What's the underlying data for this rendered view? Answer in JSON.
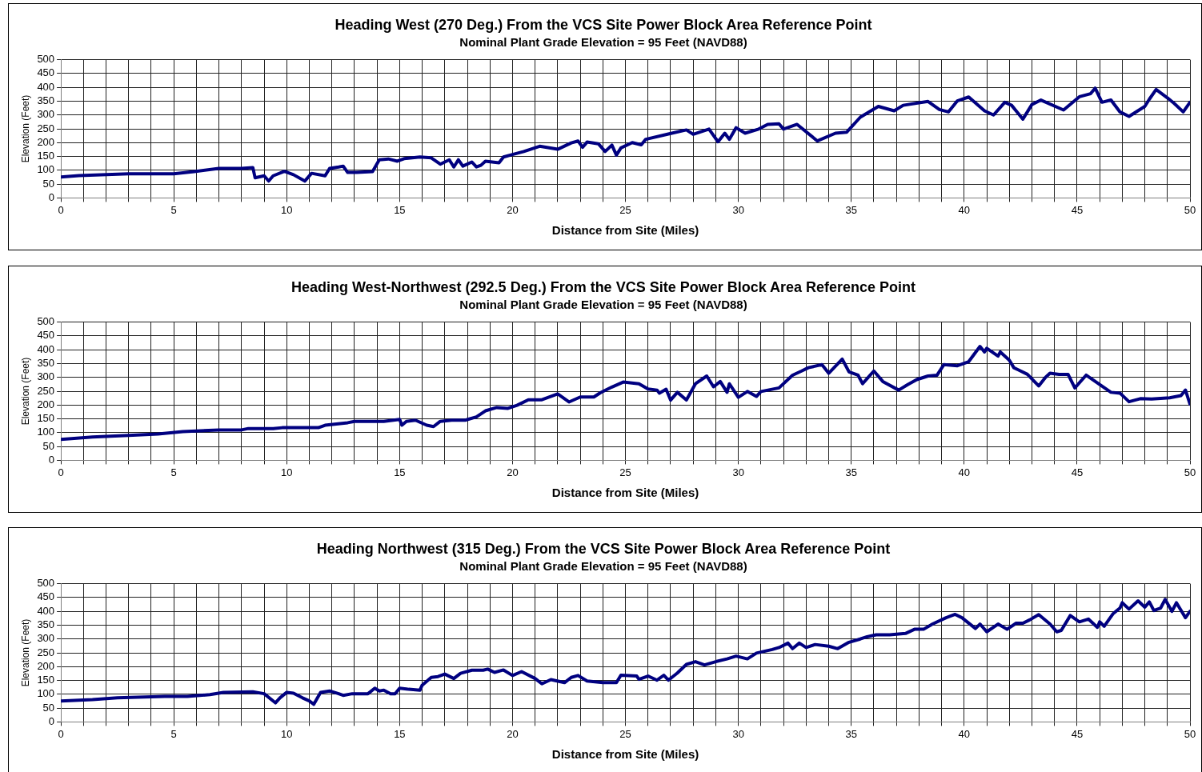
{
  "chart_data": [
    {
      "type": "line",
      "title": "Heading West (270 Deg.) From the VCS Site Power Block Area Reference Point",
      "subtitle": "Nominal Plant Grade Elevation = 95 Feet (NAVD88)",
      "xlabel": "Distance from Site (Miles)",
      "ylabel": "Elevation (Feet)",
      "grid": true,
      "marker": "none",
      "line_style": "solid",
      "xlim": [
        0,
        50
      ],
      "ylim": [
        0,
        500
      ],
      "xticks": [
        0,
        {
          "value": 1,
          "label": null
        },
        {
          "value": 2,
          "label": null
        },
        {
          "value": 3,
          "label": null
        },
        {
          "value": 4,
          "label": null
        },
        5,
        {
          "value": 6,
          "label": null
        },
        {
          "value": 7,
          "label": null
        },
        {
          "value": 8,
          "label": null
        },
        {
          "value": 9,
          "label": null
        },
        10,
        {
          "value": 11,
          "label": null
        },
        {
          "value": 12,
          "label": null
        },
        {
          "value": 13,
          "label": null
        },
        {
          "value": 14,
          "label": null
        },
        15,
        {
          "value": 16,
          "label": null
        },
        {
          "value": 17,
          "label": null
        },
        {
          "value": 18,
          "label": null
        },
        {
          "value": 19,
          "label": null
        },
        20,
        {
          "value": 21,
          "label": null
        },
        {
          "value": 22,
          "label": null
        },
        {
          "value": 23,
          "label": null
        },
        {
          "value": 24,
          "label": null
        },
        25,
        {
          "value": 26,
          "label": null
        },
        {
          "value": 27,
          "label": null
        },
        {
          "value": 28,
          "label": null
        },
        {
          "value": 29,
          "label": null
        },
        30,
        {
          "value": 31,
          "label": null
        },
        {
          "value": 32,
          "label": null
        },
        {
          "value": 33,
          "label": null
        },
        {
          "value": 34,
          "label": null
        },
        35,
        {
          "value": 36,
          "label": null
        },
        {
          "value": 37,
          "label": null
        },
        {
          "value": 38,
          "label": null
        },
        {
          "value": 39,
          "label": null
        },
        40,
        {
          "value": 41,
          "label": null
        },
        {
          "value": 42,
          "label": null
        },
        {
          "value": 43,
          "label": null
        },
        {
          "value": 44,
          "label": null
        },
        45,
        {
          "value": 46,
          "label": null
        },
        {
          "value": 47,
          "label": null
        },
        {
          "value": 48,
          "label": null
        },
        {
          "value": 49,
          "label": null
        },
        50
      ],
      "yticks": [
        0,
        50,
        100,
        150,
        200,
        250,
        300,
        350,
        400,
        450,
        500
      ],
      "x": [
        0,
        0.8,
        3,
        5,
        5.9,
        7,
        8,
        8.5,
        8.6,
        9,
        9.2,
        9.4,
        9.9,
        10.3,
        10.8,
        11.1,
        11.7,
        11.9,
        12.3,
        12.5,
        12.7,
        13.1,
        13.8,
        14.1,
        14.5,
        14.9,
        15.2,
        15.9,
        16.4,
        16.8,
        17.2,
        17.4,
        17.6,
        17.8,
        18.2,
        18.4,
        18.6,
        18.8,
        19.4,
        19.6,
        20,
        20.5,
        21.2,
        22,
        22.6,
        22.9,
        23.1,
        23.3,
        23.8,
        24.1,
        24.4,
        24.6,
        24.8,
        25.3,
        25.7,
        25.9,
        26.9,
        27.7,
        28,
        28.7,
        29.1,
        29.4,
        29.6,
        29.9,
        30.3,
        30.9,
        31.3,
        31.8,
        32,
        32.6,
        33.5,
        34.3,
        34.8,
        35.4,
        36.2,
        36.9,
        37.3,
        38.4,
        38.9,
        39.3,
        39.7,
        40.2,
        40.9,
        41.3,
        41.8,
        42.1,
        42.6,
        43,
        43.4,
        44.4,
        45.1,
        45.6,
        45.8,
        46.1,
        46.5,
        46.9,
        47.3,
        48,
        48.2,
        48.5,
        49,
        49.3,
        49.7,
        50
      ],
      "series": [
        {
          "color": "#000080",
          "values": [
            76,
            81,
            87,
            87,
            95,
            107,
            107,
            110,
            73,
            80,
            61,
            80,
            96,
            84,
            61,
            89,
            80,
            107,
            112,
            115,
            92,
            92,
            95,
            138,
            141,
            133,
            142,
            148,
            145,
            122,
            138,
            112,
            138,
            115,
            130,
            112,
            118,
            133,
            127,
            148,
            157,
            168,
            187,
            176,
            199,
            206,
            183,
            202,
            196,
            168,
            191,
            155,
            181,
            200,
            192,
            212,
            231,
            246,
            230,
            249,
            203,
            234,
            212,
            254,
            234,
            249,
            266,
            268,
            249,
            266,
            206,
            234,
            238,
            292,
            331,
            315,
            335,
            349,
            320,
            311,
            351,
            365,
            315,
            300,
            346,
            335,
            285,
            338,
            354,
            318,
            366,
            377,
            397,
            346,
            354,
            311,
            295,
            331,
            357,
            392,
            362,
            342,
            311,
            346
          ]
        }
      ]
    },
    {
      "type": "line",
      "title": "Heading West-Northwest (292.5 Deg.) From the VCS Site Power Block Area Reference Point",
      "subtitle": "Nominal Plant Grade Elevation = 95 Feet (NAVD88)",
      "xlabel": "Distance from Site (Miles)",
      "ylabel": "Elevation (Feet)",
      "grid": true,
      "marker": "none",
      "line_style": "solid",
      "xlim": [
        0,
        50
      ],
      "ylim": [
        0,
        500
      ],
      "xticks": [
        0,
        {
          "value": 1,
          "label": null
        },
        {
          "value": 2,
          "label": null
        },
        {
          "value": 3,
          "label": null
        },
        {
          "value": 4,
          "label": null
        },
        5,
        {
          "value": 6,
          "label": null
        },
        {
          "value": 7,
          "label": null
        },
        {
          "value": 8,
          "label": null
        },
        {
          "value": 9,
          "label": null
        },
        10,
        {
          "value": 11,
          "label": null
        },
        {
          "value": 12,
          "label": null
        },
        {
          "value": 13,
          "label": null
        },
        {
          "value": 14,
          "label": null
        },
        15,
        {
          "value": 16,
          "label": null
        },
        {
          "value": 17,
          "label": null
        },
        {
          "value": 18,
          "label": null
        },
        {
          "value": 19,
          "label": null
        },
        20,
        {
          "value": 21,
          "label": null
        },
        {
          "value": 22,
          "label": null
        },
        {
          "value": 23,
          "label": null
        },
        {
          "value": 24,
          "label": null
        },
        25,
        {
          "value": 26,
          "label": null
        },
        {
          "value": 27,
          "label": null
        },
        {
          "value": 28,
          "label": null
        },
        {
          "value": 29,
          "label": null
        },
        30,
        {
          "value": 31,
          "label": null
        },
        {
          "value": 32,
          "label": null
        },
        {
          "value": 33,
          "label": null
        },
        {
          "value": 34,
          "label": null
        },
        35,
        {
          "value": 36,
          "label": null
        },
        {
          "value": 37,
          "label": null
        },
        {
          "value": 38,
          "label": null
        },
        {
          "value": 39,
          "label": null
        },
        40,
        {
          "value": 41,
          "label": null
        },
        {
          "value": 42,
          "label": null
        },
        {
          "value": 43,
          "label": null
        },
        {
          "value": 44,
          "label": null
        },
        45,
        {
          "value": 46,
          "label": null
        },
        {
          "value": 47,
          "label": null
        },
        {
          "value": 48,
          "label": null
        },
        {
          "value": 49,
          "label": null
        },
        50
      ],
      "yticks": [
        0,
        50,
        100,
        150,
        200,
        250,
        300,
        350,
        400,
        450,
        500
      ],
      "x": [
        0,
        1.4,
        3,
        4.3,
        5.4,
        7,
        8,
        8.3,
        9.4,
        9.8,
        11.4,
        11.7,
        12.7,
        13,
        14.3,
        15,
        15.1,
        15.3,
        15.7,
        16.2,
        16.5,
        16.8,
        17.3,
        17.9,
        18.4,
        18.8,
        19.3,
        19.8,
        20.2,
        20.7,
        21.3,
        22,
        22.5,
        23,
        23.6,
        23.9,
        24.4,
        24.9,
        25.6,
        26,
        26.4,
        26.5,
        26.8,
        27,
        27.3,
        27.7,
        28.1,
        28.6,
        28.9,
        29.2,
        29.5,
        29.6,
        30,
        30.4,
        30.8,
        31,
        31.8,
        32.4,
        32.8,
        33.1,
        33.7,
        34,
        34.6,
        34.9,
        35.3,
        35.5,
        36,
        36.4,
        37.1,
        37.5,
        37.9,
        38.4,
        38.8,
        39.1,
        39.7,
        40.2,
        40.7,
        40.9,
        41,
        41.5,
        41.6,
        42,
        42.2,
        42.8,
        43.3,
        43.6,
        43.8,
        44.2,
        44.6,
        44.9,
        45.4,
        46,
        46.5,
        46.9,
        47.3,
        47.8,
        48.3,
        49.1,
        49.6,
        49.8,
        50
      ],
      "series": [
        {
          "color": "#000080",
          "values": [
            76,
            84,
            90,
            95,
            104,
            110,
            110,
            115,
            115,
            118,
            118,
            127,
            136,
            141,
            141,
            148,
            127,
            141,
            145,
            127,
            122,
            141,
            145,
            145,
            157,
            179,
            191,
            188,
            199,
            219,
            219,
            240,
            211,
            229,
            229,
            245,
            265,
            283,
            277,
            258,
            254,
            243,
            257,
            218,
            246,
            218,
            277,
            305,
            266,
            285,
            246,
            277,
            228,
            249,
            231,
            249,
            262,
            308,
            323,
            335,
            346,
            315,
            366,
            320,
            308,
            277,
            323,
            285,
            254,
            274,
            292,
            305,
            308,
            346,
            342,
            357,
            412,
            392,
            405,
            377,
            392,
            362,
            335,
            311,
            269,
            300,
            315,
            311,
            311,
            262,
            308,
            274,
            246,
            243,
            212,
            223,
            222,
            226,
            234,
            254,
            203
          ]
        }
      ]
    },
    {
      "type": "line",
      "title": "Heading Northwest (315 Deg.) From the VCS Site Power Block Area Reference Point",
      "subtitle": "Nominal Plant Grade Elevation = 95 Feet (NAVD88)",
      "xlabel": "Distance from Site (Miles)",
      "ylabel": "Elevation (Feet)",
      "grid": true,
      "marker": "none",
      "line_style": "solid",
      "xlim": [
        0,
        50
      ],
      "ylim": [
        0,
        500
      ],
      "xticks": [
        0,
        {
          "value": 1,
          "label": null
        },
        {
          "value": 2,
          "label": null
        },
        {
          "value": 3,
          "label": null
        },
        {
          "value": 4,
          "label": null
        },
        5,
        {
          "value": 6,
          "label": null
        },
        {
          "value": 7,
          "label": null
        },
        {
          "value": 8,
          "label": null
        },
        {
          "value": 9,
          "label": null
        },
        10,
        {
          "value": 11,
          "label": null
        },
        {
          "value": 12,
          "label": null
        },
        {
          "value": 13,
          "label": null
        },
        {
          "value": 14,
          "label": null
        },
        15,
        {
          "value": 16,
          "label": null
        },
        {
          "value": 17,
          "label": null
        },
        {
          "value": 18,
          "label": null
        },
        {
          "value": 19,
          "label": null
        },
        20,
        {
          "value": 21,
          "label": null
        },
        {
          "value": 22,
          "label": null
        },
        {
          "value": 23,
          "label": null
        },
        {
          "value": 24,
          "label": null
        },
        25,
        {
          "value": 26,
          "label": null
        },
        {
          "value": 27,
          "label": null
        },
        {
          "value": 28,
          "label": null
        },
        {
          "value": 29,
          "label": null
        },
        30,
        {
          "value": 31,
          "label": null
        },
        {
          "value": 32,
          "label": null
        },
        {
          "value": 33,
          "label": null
        },
        {
          "value": 34,
          "label": null
        },
        35,
        {
          "value": 36,
          "label": null
        },
        {
          "value": 37,
          "label": null
        },
        {
          "value": 38,
          "label": null
        },
        {
          "value": 39,
          "label": null
        },
        40,
        {
          "value": 41,
          "label": null
        },
        {
          "value": 42,
          "label": null
        },
        {
          "value": 43,
          "label": null
        },
        {
          "value": 44,
          "label": null
        },
        45,
        {
          "value": 46,
          "label": null
        },
        {
          "value": 47,
          "label": null
        },
        {
          "value": 48,
          "label": null
        },
        {
          "value": 49,
          "label": null
        },
        50
      ],
      "yticks": [
        0,
        50,
        100,
        150,
        200,
        250,
        300,
        350,
        400,
        450,
        500
      ],
      "x": [
        0,
        1.4,
        2.5,
        4.6,
        5.6,
        6.6,
        7.2,
        8.5,
        9,
        9.5,
        9.7,
        10,
        10.3,
        10.7,
        11,
        11.2,
        11.5,
        11.9,
        12.3,
        12.5,
        12.9,
        13.6,
        13.9,
        14.1,
        14.3,
        14.6,
        14.8,
        15,
        15.4,
        15.9,
        16,
        16.4,
        16.7,
        17,
        17.4,
        17.7,
        18.2,
        18.7,
        18.9,
        19.2,
        19.6,
        20,
        20.4,
        21,
        21.3,
        21.7,
        22.3,
        22.6,
        22.9,
        23.3,
        24,
        24.6,
        24.8,
        25.5,
        25.6,
        26,
        26.4,
        26.7,
        26.9,
        27.3,
        27.7,
        28.1,
        28.5,
        29,
        29.5,
        29.9,
        30.4,
        30.8,
        31.5,
        31.8,
        32.2,
        32.4,
        32.7,
        33,
        33.4,
        34,
        34.4,
        34.9,
        35.4,
        35.7,
        36.1,
        36.7,
        37.4,
        37.8,
        38.2,
        38.6,
        39.2,
        39.6,
        39.9,
        40.5,
        40.7,
        41,
        41.5,
        41.9,
        42.3,
        42.6,
        42.9,
        43.3,
        43.8,
        44.1,
        44.3,
        44.7,
        45.1,
        45.5,
        45.9,
        46,
        46.2,
        46.6,
        46.9,
        47,
        47.3,
        47.7,
        48,
        48.2,
        48.4,
        48.7,
        48.9,
        49.2,
        49.4,
        49.8,
        50
      ],
      "series": [
        {
          "color": "#000080",
          "values": [
            76,
            81,
            87,
            92,
            92,
            99,
            107,
            109,
            102,
            69,
            87,
            107,
            104,
            87,
            76,
            64,
            107,
            112,
            102,
            96,
            102,
            102,
            122,
            112,
            115,
            102,
            102,
            122,
            118,
            115,
            133,
            161,
            164,
            173,
            157,
            176,
            187,
            187,
            191,
            179,
            188,
            168,
            182,
            157,
            138,
            153,
            142,
            161,
            168,
            148,
            142,
            142,
            169,
            166,
            154,
            166,
            151,
            169,
            151,
            177,
            208,
            218,
            206,
            218,
            228,
            238,
            228,
            249,
            262,
            269,
            285,
            265,
            285,
            269,
            280,
            274,
            265,
            288,
            300,
            308,
            315,
            315,
            320,
            335,
            335,
            354,
            377,
            389,
            377,
            338,
            354,
            326,
            354,
            335,
            357,
            357,
            369,
            388,
            354,
            326,
            331,
            385,
            362,
            372,
            342,
            362,
            346,
            392,
            412,
            431,
            408,
            438,
            415,
            434,
            403,
            412,
            443,
            400,
            431,
            377,
            400
          ]
        }
      ]
    }
  ]
}
